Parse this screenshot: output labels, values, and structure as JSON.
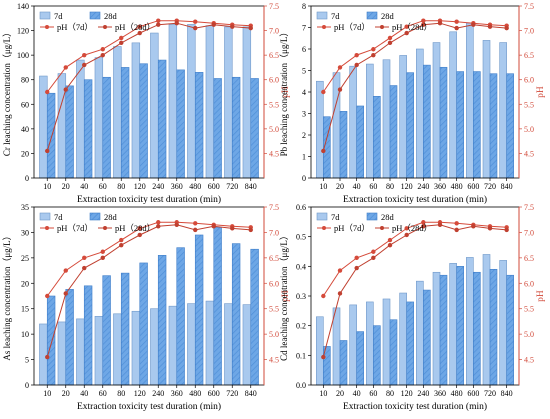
{
  "colors": {
    "bar7": "#a9c9ee",
    "bar7_stroke": "#6f98c9",
    "bar28": "#6ea7e6",
    "bar28_stroke": "#3f7ec9",
    "ph7": "#d54a3a",
    "ph28": "#c04030",
    "right_axis": "#d24a3a",
    "axis": "#000000"
  },
  "legend_labels": {
    "d7": "7d",
    "d28": "28d",
    "ph7": "pH（7d）",
    "ph28": "pH（28d）"
  },
  "chart_data": [
    {
      "type": "bar",
      "panel": "Cr",
      "xlabel": "Extraction toxicity test duration (min)",
      "ylabel": "Cr leaching concentration（μg/L）",
      "y2label": "pH",
      "categories": [
        "10",
        "20",
        "40",
        "60",
        "80",
        "120",
        "240",
        "360",
        "480",
        "600",
        "720",
        "840"
      ],
      "ylim": [
        0,
        140
      ],
      "yticks": [
        0,
        20,
        40,
        60,
        80,
        100,
        120,
        140
      ],
      "y2lim": [
        4.0,
        7.5
      ],
      "y2ticks": [
        4.5,
        5.0,
        5.5,
        6.0,
        6.5,
        7.0,
        7.5
      ],
      "series": [
        {
          "name": "7d",
          "kind": "bar",
          "values": [
            83,
            85,
            96,
            98,
            107,
            110,
            118,
            125,
            125,
            124,
            123,
            123
          ]
        },
        {
          "name": "28d",
          "kind": "bar",
          "values": [
            69,
            75,
            80,
            82,
            90,
            93,
            96,
            88,
            86,
            81,
            82,
            81
          ]
        },
        {
          "name": "pH（7d）",
          "kind": "line",
          "values": [
            5.75,
            6.25,
            6.5,
            6.62,
            6.85,
            7.08,
            7.2,
            7.2,
            7.18,
            7.15,
            7.12,
            7.1
          ]
        },
        {
          "name": "pH（28d）",
          "kind": "line",
          "values": [
            4.55,
            5.8,
            6.3,
            6.5,
            6.75,
            6.95,
            7.12,
            7.15,
            7.05,
            7.12,
            7.08,
            7.05
          ]
        }
      ]
    },
    {
      "type": "bar",
      "panel": "Pb",
      "xlabel": "Extraction toxicity test duration (min)",
      "ylabel": "Pb leaching concentration（μg/L）",
      "y2label": "pH",
      "categories": [
        "10",
        "20",
        "40",
        "60",
        "80",
        "120",
        "240",
        "360",
        "480",
        "600",
        "720",
        "840"
      ],
      "ylim": [
        0,
        8
      ],
      "yticks": [
        0,
        1,
        2,
        3,
        4,
        5,
        6,
        7,
        8
      ],
      "y2lim": [
        4.0,
        7.5
      ],
      "y2ticks": [
        4.5,
        5.0,
        5.5,
        6.0,
        6.5,
        7.0,
        7.5
      ],
      "series": [
        {
          "name": "7d",
          "kind": "bar",
          "values": [
            4.5,
            4.9,
            5.2,
            5.3,
            5.5,
            5.7,
            6.0,
            6.3,
            6.8,
            7.2,
            6.4,
            6.3
          ]
        },
        {
          "name": "28d",
          "kind": "bar",
          "values": [
            2.85,
            3.1,
            3.35,
            3.8,
            4.3,
            4.9,
            5.25,
            5.15,
            4.95,
            4.95,
            4.85,
            4.85
          ]
        },
        {
          "name": "pH（7d）",
          "kind": "line",
          "values": [
            5.75,
            6.25,
            6.5,
            6.62,
            6.85,
            7.08,
            7.2,
            7.2,
            7.18,
            7.15,
            7.12,
            7.1
          ]
        },
        {
          "name": "pH（28d）",
          "kind": "line",
          "values": [
            4.55,
            5.8,
            6.3,
            6.5,
            6.75,
            6.95,
            7.12,
            7.15,
            7.05,
            7.12,
            7.08,
            7.05
          ]
        }
      ]
    },
    {
      "type": "bar",
      "panel": "As",
      "xlabel": "Extraction toxicity test duration (min)",
      "ylabel": "As leaching concentration（μg/L）",
      "y2label": "pH",
      "categories": [
        "10",
        "20",
        "40",
        "60",
        "80",
        "120",
        "240",
        "360",
        "480",
        "600",
        "720",
        "840"
      ],
      "ylim": [
        0,
        35
      ],
      "yticks": [
        0,
        5,
        10,
        15,
        20,
        25,
        30,
        35
      ],
      "y2lim": [
        4.0,
        7.5
      ],
      "y2ticks": [
        4.5,
        5.0,
        5.5,
        6.0,
        6.5,
        7.0,
        7.5
      ],
      "series": [
        {
          "name": "7d",
          "kind": "bar",
          "values": [
            12,
            12.4,
            13,
            13.5,
            14,
            14.5,
            15,
            15.5,
            16,
            16.5,
            16,
            15.8
          ]
        },
        {
          "name": "28d",
          "kind": "bar",
          "values": [
            17.5,
            18.8,
            19.5,
            21.5,
            22,
            24,
            25.5,
            27,
            29.5,
            31,
            27.8,
            26.7
          ]
        },
        {
          "name": "pH（7d）",
          "kind": "line",
          "values": [
            5.75,
            6.25,
            6.5,
            6.62,
            6.85,
            7.08,
            7.2,
            7.2,
            7.18,
            7.15,
            7.12,
            7.1
          ]
        },
        {
          "name": "pH（28d）",
          "kind": "line",
          "values": [
            4.55,
            5.8,
            6.3,
            6.5,
            6.75,
            6.95,
            7.12,
            7.15,
            7.05,
            7.12,
            7.08,
            7.05
          ]
        }
      ]
    },
    {
      "type": "bar",
      "panel": "Cd",
      "xlabel": "Extraction toxicity test duration (min)",
      "ylabel": "Cd leaching concentration（μg/L）",
      "y2label": "pH",
      "categories": [
        "10",
        "20",
        "40",
        "60",
        "80",
        "120",
        "240",
        "360",
        "480",
        "600",
        "720",
        "840"
      ],
      "ylim": [
        0,
        0.6
      ],
      "yticks": [
        0.0,
        0.1,
        0.2,
        0.3,
        0.4,
        0.5,
        0.6
      ],
      "y2lim": [
        4.0,
        7.5
      ],
      "y2ticks": [
        4.5,
        5.0,
        5.5,
        6.0,
        6.5,
        7.0,
        7.5
      ],
      "series": [
        {
          "name": "7d",
          "kind": "bar",
          "values": [
            0.23,
            0.26,
            0.27,
            0.28,
            0.29,
            0.31,
            0.35,
            0.38,
            0.41,
            0.43,
            0.44,
            0.42
          ]
        },
        {
          "name": "28d",
          "kind": "bar",
          "values": [
            0.13,
            0.15,
            0.18,
            0.2,
            0.22,
            0.28,
            0.32,
            0.37,
            0.4,
            0.38,
            0.39,
            0.37
          ]
        },
        {
          "name": "pH（7d）",
          "kind": "line",
          "values": [
            5.75,
            6.25,
            6.5,
            6.62,
            6.85,
            7.08,
            7.2,
            7.2,
            7.18,
            7.15,
            7.12,
            7.1
          ]
        },
        {
          "name": "pH（28d）",
          "kind": "line",
          "values": [
            4.55,
            5.8,
            6.3,
            6.5,
            6.75,
            6.95,
            7.12,
            7.15,
            7.05,
            7.12,
            7.08,
            7.05
          ]
        }
      ]
    }
  ]
}
